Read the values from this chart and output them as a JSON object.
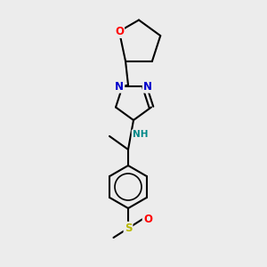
{
  "bg_color": "#ececec",
  "bond_color": "#000000",
  "bond_lw": 1.5,
  "atom_colors": {
    "N": "#0000cc",
    "O_red": "#ff0000",
    "O_red2": "#ff0000",
    "S": "#b8b800",
    "NH": "#008888"
  },
  "font_size_atom": 8.5,
  "font_size_small": 7.5
}
